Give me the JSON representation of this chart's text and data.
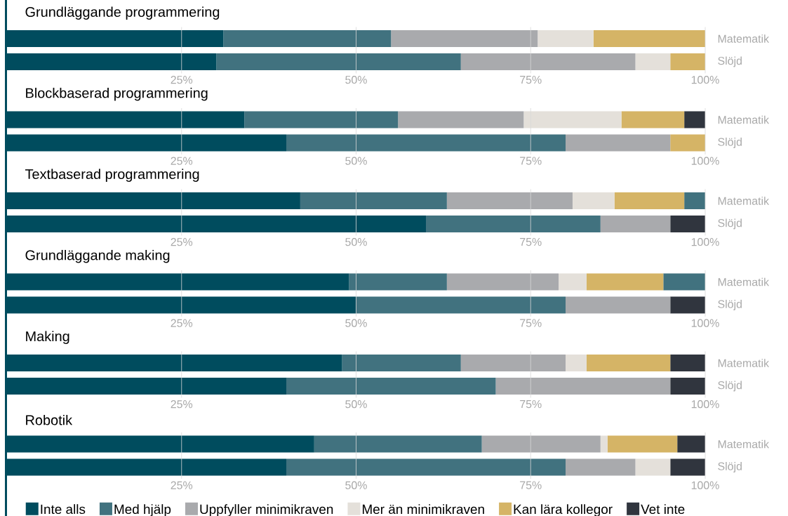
{
  "chart_data": [
    {
      "type": "bar",
      "orientation": "horizontal",
      "stacked": true,
      "title": "Grundläggande programmering",
      "categories": [
        "Matematik",
        "Slöjd"
      ],
      "xlim": [
        0,
        100
      ],
      "xticks": [
        {
          "value": 25,
          "label": "25%"
        },
        {
          "value": 50,
          "label": "50%"
        },
        {
          "value": 75,
          "label": "75%"
        },
        {
          "value": 100,
          "label": "100%"
        }
      ],
      "grid": "x",
      "series": [
        {
          "color": "#004c5e",
          "values": [
            31,
            30
          ]
        },
        {
          "color": "#41727f",
          "values": [
            24,
            35
          ]
        },
        {
          "color": "#a9aaad",
          "values": [
            21,
            25
          ]
        },
        {
          "color": "#e4e0da",
          "values": [
            8,
            5
          ]
        },
        {
          "color": "#d5b466",
          "values": [
            16,
            5
          ]
        },
        {
          "color": "#30353e",
          "values": [
            0,
            0
          ]
        }
      ]
    },
    {
      "type": "bar",
      "orientation": "horizontal",
      "stacked": true,
      "title": "Blockbaserad programmering",
      "categories": [
        "Matematik",
        "Slöjd"
      ],
      "xlim": [
        0,
        100
      ],
      "xticks": [
        {
          "value": 25,
          "label": "25%"
        },
        {
          "value": 50,
          "label": "50%"
        },
        {
          "value": 75,
          "label": "75%"
        },
        {
          "value": 100,
          "label": "100%"
        }
      ],
      "grid": "x",
      "series": [
        {
          "color": "#004c5e",
          "values": [
            34,
            40
          ]
        },
        {
          "color": "#41727f",
          "values": [
            22,
            40
          ]
        },
        {
          "color": "#a9aaad",
          "values": [
            18,
            15
          ]
        },
        {
          "color": "#e4e0da",
          "values": [
            14,
            0
          ]
        },
        {
          "color": "#d5b466",
          "values": [
            9,
            5
          ]
        },
        {
          "color": "#30353e",
          "values": [
            3,
            0
          ]
        }
      ]
    },
    {
      "type": "bar",
      "orientation": "horizontal",
      "stacked": true,
      "title": "Textbaserad programmering",
      "categories": [
        "Matematik",
        "Slöjd"
      ],
      "xlim": [
        0,
        100
      ],
      "xticks": [
        {
          "value": 25,
          "label": "25%"
        },
        {
          "value": 50,
          "label": "50%"
        },
        {
          "value": 75,
          "label": "75%"
        },
        {
          "value": 100,
          "label": "100%"
        }
      ],
      "grid": "x",
      "series": [
        {
          "color": "#004c5e",
          "values": [
            42,
            60
          ]
        },
        {
          "color": "#41727f",
          "values": [
            21,
            25
          ]
        },
        {
          "color": "#a9aaad",
          "values": [
            18,
            10
          ]
        },
        {
          "color": "#e4e0da",
          "values": [
            6,
            0
          ]
        },
        {
          "color": "#d5b466",
          "values": [
            10,
            0
          ]
        },
        {
          "color": "#30353e",
          "colors": [
            "#41727f",
            "#30353e"
          ],
          "values": [
            3,
            5
          ]
        }
      ]
    },
    {
      "type": "bar",
      "orientation": "horizontal",
      "stacked": true,
      "title": "Grundläggande making",
      "categories": [
        "Matematik",
        "Slöjd"
      ],
      "xlim": [
        0,
        100
      ],
      "xticks": [
        {
          "value": 25,
          "label": "25%"
        },
        {
          "value": 50,
          "label": "50%"
        },
        {
          "value": 75,
          "label": "75%"
        },
        {
          "value": 100,
          "label": "100%"
        }
      ],
      "grid": "x",
      "series": [
        {
          "color": "#004c5e",
          "values": [
            49,
            50
          ]
        },
        {
          "color": "#41727f",
          "values": [
            14,
            30
          ]
        },
        {
          "color": "#a9aaad",
          "values": [
            16,
            15
          ]
        },
        {
          "color": "#e4e0da",
          "values": [
            4,
            0
          ]
        },
        {
          "color": "#d5b466",
          "values": [
            11,
            0
          ]
        },
        {
          "color": "#30353e",
          "colors": [
            "#41727f",
            "#30353e"
          ],
          "values": [
            6,
            5
          ]
        }
      ]
    },
    {
      "type": "bar",
      "orientation": "horizontal",
      "stacked": true,
      "title": "Making",
      "categories": [
        "Matematik",
        "Slöjd"
      ],
      "xlim": [
        0,
        100
      ],
      "xticks": [
        {
          "value": 25,
          "label": "25%"
        },
        {
          "value": 50,
          "label": "50%"
        },
        {
          "value": 75,
          "label": "75%"
        },
        {
          "value": 100,
          "label": "100%"
        }
      ],
      "grid": "x",
      "series": [
        {
          "color": "#004c5e",
          "values": [
            48,
            40
          ]
        },
        {
          "color": "#41727f",
          "values": [
            17,
            30
          ]
        },
        {
          "color": "#a9aaad",
          "values": [
            15,
            25
          ]
        },
        {
          "color": "#e4e0da",
          "values": [
            3,
            0
          ]
        },
        {
          "color": "#d5b466",
          "values": [
            12,
            0
          ]
        },
        {
          "color": "#30353e",
          "values": [
            5,
            5
          ]
        }
      ]
    },
    {
      "type": "bar",
      "orientation": "horizontal",
      "stacked": true,
      "title": "Robotik",
      "categories": [
        "Matematik",
        "Slöjd"
      ],
      "xlim": [
        0,
        100
      ],
      "xticks": [
        {
          "value": 25,
          "label": "25%"
        },
        {
          "value": 50,
          "label": "50%"
        },
        {
          "value": 75,
          "label": "75%"
        },
        {
          "value": 100,
          "label": "100%"
        }
      ],
      "grid": "x",
      "legend": "bottom",
      "series": [
        {
          "name": "Inte alls",
          "color": "#004c5e",
          "values": [
            44,
            40
          ]
        },
        {
          "name": "Med hjälp",
          "color": "#41727f",
          "values": [
            24,
            40
          ]
        },
        {
          "name": "Uppfyller minimikraven",
          "color": "#a9aaad",
          "values": [
            17,
            10
          ]
        },
        {
          "name": "Mer än minimikraven",
          "color": "#e4e0da",
          "values": [
            1,
            5
          ]
        },
        {
          "name": "Kan lära kollegor",
          "color": "#d5b466",
          "values": [
            10,
            0
          ]
        },
        {
          "name": "Vet inte",
          "color": "#30353e",
          "values": [
            4,
            5
          ]
        }
      ]
    }
  ]
}
